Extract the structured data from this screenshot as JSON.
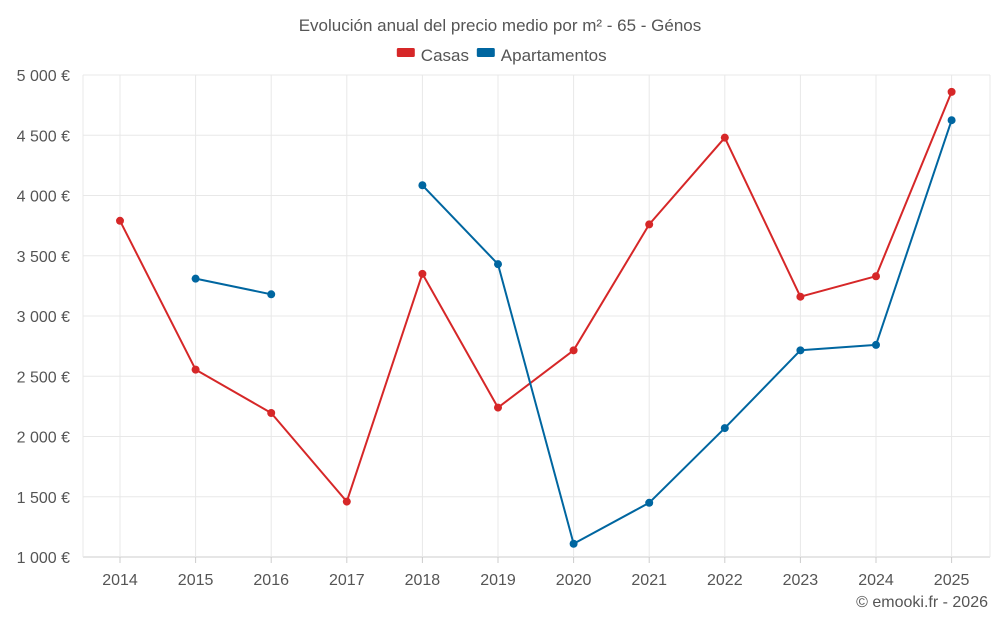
{
  "chart_data": {
    "type": "line",
    "title": "Evolución anual del precio medio por m² - 65 - Génos",
    "categories": [
      "2014",
      "2015",
      "2016",
      "2017",
      "2018",
      "2019",
      "2020",
      "2021",
      "2022",
      "2023",
      "2024",
      "2025"
    ],
    "ylim": [
      1000,
      5000
    ],
    "yticks": [
      1000,
      1500,
      2000,
      2500,
      3000,
      3500,
      4000,
      4500,
      5000
    ],
    "ytick_labels": [
      "1 000 €",
      "1 500 €",
      "2 000 €",
      "2 500 €",
      "3 000 €",
      "3 500 €",
      "4 000 €",
      "4 500 €",
      "5 000 €"
    ],
    "grid": true,
    "legend_position": "top-center",
    "series": [
      {
        "name": "Casas",
        "color": "#d62728",
        "values": [
          3790,
          2555,
          2195,
          1460,
          3350,
          2240,
          2715,
          3760,
          4480,
          3160,
          3330,
          4860
        ]
      },
      {
        "name": "Apartamentos",
        "color": "#0066a0",
        "values": [
          null,
          3310,
          3180,
          null,
          4085,
          3430,
          1110,
          1450,
          2070,
          2715,
          2760,
          4625
        ]
      }
    ]
  },
  "footer": "© emooki.fr - 2026"
}
